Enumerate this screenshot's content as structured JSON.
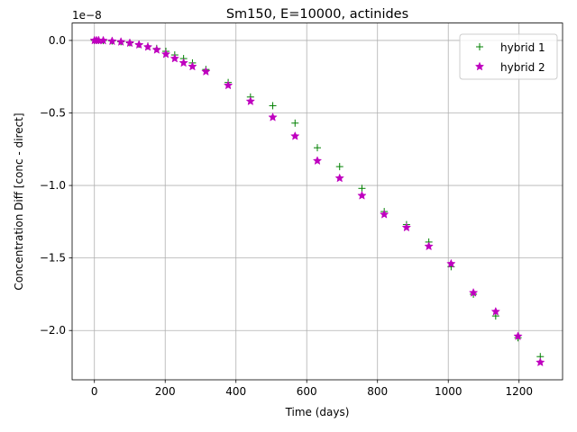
{
  "chart_data": {
    "type": "scatter",
    "title": "Sm150, E=10000, actinides",
    "xlabel": "Time (days)",
    "ylabel": "Concentration Diff [conc - direct]",
    "offset_label": "1e−8",
    "xlim": [
      -63,
      1323
    ],
    "ylim": [
      -2.34,
      0.12
    ],
    "x_ticks": [
      0,
      200,
      400,
      600,
      800,
      1000,
      1200
    ],
    "y_ticks": [
      0.0,
      -0.5,
      -1.0,
      -1.5,
      -2.0
    ],
    "y_tick_labels": [
      "0.0",
      "−0.5",
      "−1.0",
      "−1.5",
      "−2.0"
    ],
    "grid": true,
    "legend_position": "top-right",
    "series": [
      {
        "name": "hybrid 1",
        "marker": "plus",
        "color": "#008000",
        "x": [
          0,
          6,
          12,
          25,
          50,
          75,
          100,
          126,
          151,
          176,
          202,
          227,
          252,
          277,
          315,
          378,
          441,
          504,
          567,
          630,
          693,
          756,
          819,
          882,
          945,
          1008,
          1071,
          1134,
          1197,
          1260
        ],
        "y": [
          0.0,
          0.0,
          0.0,
          -0.001,
          -0.004,
          -0.009,
          -0.016,
          -0.026,
          -0.038,
          -0.055,
          -0.075,
          -0.1,
          -0.125,
          -0.155,
          -0.2,
          -0.29,
          -0.39,
          -0.45,
          -0.57,
          -0.74,
          -0.87,
          -1.02,
          -1.18,
          -1.27,
          -1.39,
          -1.56,
          -1.75,
          -1.9,
          -2.05,
          -2.18
        ]
      },
      {
        "name": "hybrid 2",
        "marker": "star",
        "color": "#bf00bf",
        "x": [
          0,
          6,
          12,
          25,
          50,
          75,
          100,
          126,
          151,
          176,
          202,
          227,
          252,
          277,
          315,
          378,
          441,
          504,
          567,
          630,
          693,
          756,
          819,
          882,
          945,
          1008,
          1071,
          1134,
          1197,
          1260
        ],
        "y": [
          0.0,
          0.0,
          0.0,
          -0.001,
          -0.005,
          -0.01,
          -0.018,
          -0.03,
          -0.045,
          -0.065,
          -0.095,
          -0.125,
          -0.155,
          -0.18,
          -0.215,
          -0.31,
          -0.42,
          -0.53,
          -0.66,
          -0.83,
          -0.95,
          -1.07,
          -1.2,
          -1.29,
          -1.42,
          -1.54,
          -1.74,
          -1.87,
          -2.04,
          -2.22
        ]
      }
    ]
  }
}
